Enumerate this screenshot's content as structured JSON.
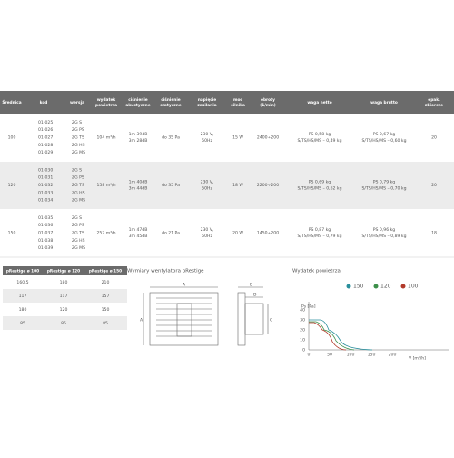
{
  "table": {
    "headers": [
      [
        "Średnica"
      ],
      [
        "kod"
      ],
      [
        "wersja"
      ],
      [
        "wydatek",
        "powietrza"
      ],
      [
        "ciśnienie",
        "akustyczne"
      ],
      [
        "ciśnienie",
        "statyczne"
      ],
      [
        "napięcie",
        "zasilania"
      ],
      [
        "moc",
        "silnika"
      ],
      [
        "obroty",
        "(1/min)"
      ],
      [
        "waga netto"
      ],
      [
        "waga brutto"
      ],
      [
        "opak.",
        "zbiorcze"
      ]
    ],
    "rows": [
      {
        "diameter": "100",
        "codes": [
          "01-025",
          "01-026",
          "01-027",
          "01-028",
          "01-029"
        ],
        "versions": [
          "ZG S",
          "ZG PS",
          "ZG TS",
          "ZG HS",
          "ZG MS"
        ],
        "flow": "104 m³/h",
        "acoustic": [
          "1m 39dB",
          "3m 28dB"
        ],
        "static": "do 35 Pa",
        "voltage": [
          "230 V,",
          "50Hz"
        ],
        "power": "15 W",
        "rpm": "2400÷200",
        "net": [
          "PS 0,58 kg",
          "S/TS/HS/MS – 0,49 kg"
        ],
        "gross": [
          "PS 0,67 kg",
          "S/TS/HS/MS – 0,60 kg"
        ],
        "pack": "20"
      },
      {
        "diameter": "120",
        "codes": [
          "01-030",
          "01-031",
          "01-032",
          "01-033",
          "01-034"
        ],
        "versions": [
          "ZG S",
          "ZG PS",
          "ZG TS",
          "ZG HS",
          "ZG MS"
        ],
        "flow": "158 m³/h",
        "acoustic": [
          "1m 40dB",
          "3m 44dB"
        ],
        "static": "do 35 Pa",
        "voltage": [
          "230 V,",
          "50Hz"
        ],
        "power": "18 W",
        "rpm": "2200÷200",
        "net": [
          "PS 0,69 kg",
          "S/TS/HS/MS – 0,62 kg"
        ],
        "gross": [
          "PS 0,79 kg",
          "S/TS/HS/MS – 0,70 kg"
        ],
        "pack": "20"
      },
      {
        "diameter": "150",
        "codes": [
          "01-035",
          "01-036",
          "01-037",
          "01-038",
          "01-039"
        ],
        "versions": [
          "ZG S",
          "ZG PS",
          "ZG TS",
          "ZG HS",
          "ZG MS"
        ],
        "flow": "257 m³/h",
        "acoustic": [
          "1m 47dB",
          "3m 45dB"
        ],
        "static": "do 21 Pa",
        "voltage": [
          "230 V,",
          "50Hz"
        ],
        "power": "20 W",
        "rpm": "1450÷200",
        "net": [
          "PS 0,87 kg",
          "S/TS/HS/MS – 0,79 kg"
        ],
        "gross": [
          "PS 0,96 kg",
          "S/TS/HS/MS – 0,89 kg"
        ],
        "pack": "18"
      }
    ]
  },
  "dimensions_table": {
    "headers": [
      "pRestige ø 100",
      "pRestige ø 120",
      "pRestige ø 150"
    ],
    "rows": [
      [
        "160,5",
        "180",
        "210"
      ],
      [
        "117",
        "117",
        "157"
      ],
      [
        "180",
        "120",
        "150"
      ],
      [
        "85",
        "85",
        "85"
      ]
    ]
  },
  "drawing": {
    "title": "Wymiary wentylatora pRestige",
    "labels": [
      "A",
      "B",
      "C",
      "D"
    ]
  },
  "chart": {
    "title": "Wydatek powietrza",
    "legend": [
      "150",
      "120",
      "100"
    ],
    "y_label": "Ps [Pa]",
    "x_label": "V [m³/h]",
    "yticks": [
      "0",
      "10",
      "20",
      "30",
      "40"
    ],
    "xticks": [
      "0",
      "50",
      "100",
      "150",
      "200"
    ]
  }
}
